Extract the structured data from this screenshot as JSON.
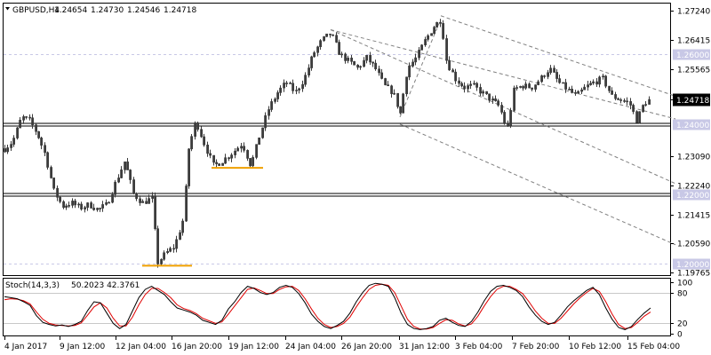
{
  "chart_data": [
    {
      "type": "candlestick",
      "title": "GBPUSD,H4",
      "info_values": [
        "1.24654",
        "1.24730",
        "1.24546",
        "1.24718"
      ],
      "current_price": 1.24718,
      "current_price_label": "1.24718",
      "ylim": [
        1.1968,
        1.2745
      ],
      "y_ticks": [
        1.2724,
        1.26415,
        1.25565,
        1.24718,
        1.2309,
        1.2224,
        1.21415,
        1.2059,
        1.19765
      ],
      "y_tick_labels": [
        "1.27240",
        "1.26415",
        "1.25565",
        "1.24718",
        "1.23090",
        "1.22240",
        "1.21415",
        "1.20590",
        "1.19765"
      ],
      "x_labels": [
        "4 Jan 2017",
        "9 Jan 12:00",
        "12 Jan 04:00",
        "16 Jan 20:00",
        "19 Jan 12:00",
        "24 Jan 04:00",
        "26 Jan 20:00",
        "31 Jan 12:00",
        "3 Feb 04:00",
        "7 Feb 20:00",
        "10 Feb 12:00",
        "15 Feb 04:00"
      ],
      "key_levels": [
        {
          "value": 1.26,
          "label": "1.26000",
          "style": "dashed"
        },
        {
          "value": 1.24,
          "label": "1.24000",
          "style": "double"
        },
        {
          "value": 1.22,
          "label": "1.22000",
          "style": "double"
        },
        {
          "value": 1.2,
          "label": "1.20000",
          "style": "dashed"
        }
      ],
      "support_marks": [
        {
          "x_index": [
            238,
            296
          ],
          "value": 1.2275
        },
        {
          "x_index": [
            160,
            216
          ],
          "value": 1.1995
        }
      ],
      "trendlines": [
        {
          "from": [
            372,
            1.267
          ],
          "to": [
            760,
            1.2415
          ]
        },
        {
          "from": [
            372,
            1.267
          ],
          "to": [
            760,
            1.223
          ]
        },
        {
          "from": [
            450,
            1.24
          ],
          "to": [
            760,
            1.2055
          ]
        },
        {
          "from": [
            496,
            1.271
          ],
          "to": [
            760,
            1.248
          ]
        },
        {
          "from": [
            450,
            1.242
          ],
          "to": [
            496,
            1.27
          ]
        }
      ],
      "price_path": [
        [
          5,
          1.233
        ],
        [
          14,
          1.235
        ],
        [
          24,
          1.242
        ],
        [
          33,
          1.241
        ],
        [
          42,
          1.237
        ],
        [
          51,
          1.231
        ],
        [
          60,
          1.221
        ],
        [
          70,
          1.2165
        ],
        [
          80,
          1.2175
        ],
        [
          90,
          1.216
        ],
        [
          100,
          1.217
        ],
        [
          110,
          1.2155
        ],
        [
          120,
          1.217
        ],
        [
          130,
          1.2235
        ],
        [
          140,
          1.2295
        ],
        [
          150,
          1.22
        ],
        [
          160,
          1.2175
        ],
        [
          172,
          1.219
        ],
        [
          176,
          1.2
        ],
        [
          186,
          1.203
        ],
        [
          196,
          1.205
        ],
        [
          206,
          1.213
        ],
        [
          212,
          1.233
        ],
        [
          220,
          1.241
        ],
        [
          230,
          1.234
        ],
        [
          240,
          1.228
        ],
        [
          250,
          1.2295
        ],
        [
          262,
          1.232
        ],
        [
          272,
          1.2345
        ],
        [
          282,
          1.228
        ],
        [
          292,
          1.237
        ],
        [
          302,
          1.2445
        ],
        [
          312,
          1.249
        ],
        [
          322,
          1.252
        ],
        [
          332,
          1.249
        ],
        [
          342,
          1.253
        ],
        [
          352,
          1.26
        ],
        [
          362,
          1.264
        ],
        [
          372,
          1.266
        ],
        [
          382,
          1.26
        ],
        [
          392,
          1.258
        ],
        [
          402,
          1.256
        ],
        [
          412,
          1.259
        ],
        [
          422,
          1.256
        ],
        [
          432,
          1.251
        ],
        [
          442,
          1.249
        ],
        [
          450,
          1.243
        ],
        [
          458,
          1.256
        ],
        [
          468,
          1.259
        ],
        [
          478,
          1.264
        ],
        [
          488,
          1.268
        ],
        [
          496,
          1.27
        ],
        [
          502,
          1.258
        ],
        [
          512,
          1.253
        ],
        [
          522,
          1.2505
        ],
        [
          532,
          1.251
        ],
        [
          542,
          1.249
        ],
        [
          552,
          1.247
        ],
        [
          562,
          1.245
        ],
        [
          570,
          1.238
        ],
        [
          578,
          1.25
        ],
        [
          588,
          1.251
        ],
        [
          598,
          1.2505
        ],
        [
          608,
          1.253
        ],
        [
          618,
          1.256
        ],
        [
          628,
          1.252
        ],
        [
          638,
          1.25
        ],
        [
          648,
          1.248
        ],
        [
          658,
          1.2505
        ],
        [
          668,
          1.252
        ],
        [
          678,
          1.253
        ],
        [
          688,
          1.248
        ],
        [
          698,
          1.247
        ],
        [
          708,
          1.246
        ],
        [
          716,
          1.241
        ],
        [
          724,
          1.246
        ],
        [
          732,
          1.2472
        ]
      ],
      "stoch": {
        "label": "Stoch(14,3,3)",
        "values_label": "50.2023 42.3761",
        "k": 50.2023,
        "d": 42.3761,
        "ylim": [
          0,
          100
        ],
        "ticks": [
          100,
          80,
          20,
          0
        ],
        "tick_labels": [
          "100",
          "80",
          "20",
          "0"
        ],
        "k_series": [
          72,
          70,
          68,
          62,
          55,
          35,
          22,
          18,
          15,
          17,
          14,
          18,
          24,
          45,
          62,
          60,
          40,
          20,
          10,
          18,
          44,
          70,
          86,
          92,
          84,
          76,
          62,
          50,
          46,
          42,
          36,
          26,
          22,
          18,
          26,
          48,
          62,
          80,
          92,
          88,
          80,
          76,
          80,
          90,
          94,
          90,
          78,
          60,
          38,
          24,
          14,
          10,
          16,
          24,
          40,
          62,
          80,
          94,
          98,
          96,
          92,
          70,
          40,
          18,
          10,
          8,
          10,
          14,
          26,
          30,
          22,
          16,
          14,
          24,
          42,
          64,
          82,
          92,
          94,
          90,
          84,
          72,
          52,
          36,
          24,
          18,
          22,
          36,
          52,
          64,
          74,
          84,
          90,
          76,
          50,
          28,
          12,
          8,
          14,
          28,
          40,
          50
        ],
        "d_series": [
          66,
          68,
          67,
          64,
          58,
          42,
          28,
          20,
          17,
          16,
          15,
          16,
          21,
          36,
          52,
          60,
          50,
          30,
          15,
          15,
          32,
          56,
          76,
          88,
          88,
          80,
          70,
          56,
          49,
          45,
          39,
          30,
          25,
          20,
          23,
          38,
          54,
          70,
          86,
          89,
          84,
          78,
          78,
          86,
          91,
          92,
          84,
          68,
          48,
          30,
          18,
          12,
          14,
          20,
          32,
          52,
          70,
          86,
          94,
          96,
          94,
          80,
          54,
          28,
          14,
          9,
          9,
          12,
          20,
          27,
          26,
          19,
          15,
          19,
          34,
          54,
          72,
          86,
          92,
          92,
          86,
          78,
          62,
          44,
          30,
          20,
          20,
          30,
          44,
          58,
          70,
          80,
          88,
          82,
          62,
          38,
          18,
          10,
          12,
          22,
          34,
          42
        ]
      }
    }
  ]
}
